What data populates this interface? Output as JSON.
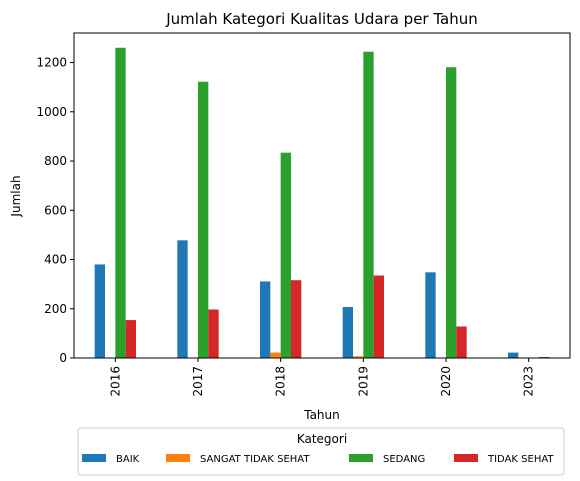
{
  "chart_data": {
    "type": "bar",
    "title": "Jumlah Kategori Kualitas Udara per Tahun",
    "xlabel": "Tahun",
    "ylabel": "Jumlah",
    "categories": [
      "2016",
      "2017",
      "2018",
      "2019",
      "2020",
      "2023"
    ],
    "ylim": [
      0,
      1320
    ],
    "yticks": [
      0,
      200,
      400,
      600,
      800,
      1000,
      1200
    ],
    "grid": false,
    "legend": {
      "title": "Kategori",
      "placement": "bottom-center"
    },
    "series": [
      {
        "name": "BAIK",
        "color": "#1f77b4",
        "values": [
          380,
          478,
          311,
          207,
          348,
          22
        ]
      },
      {
        "name": "SANGAT TIDAK SEHAT",
        "color": "#ff7f0e",
        "values": [
          0,
          0,
          22,
          7,
          0,
          0
        ]
      },
      {
        "name": "SEDANG",
        "color": "#2ca02c",
        "values": [
          1260,
          1122,
          834,
          1244,
          1181,
          0
        ]
      },
      {
        "name": "TIDAK SEHAT",
        "color": "#d62728",
        "values": [
          154,
          197,
          316,
          335,
          128,
          4
        ]
      }
    ]
  }
}
